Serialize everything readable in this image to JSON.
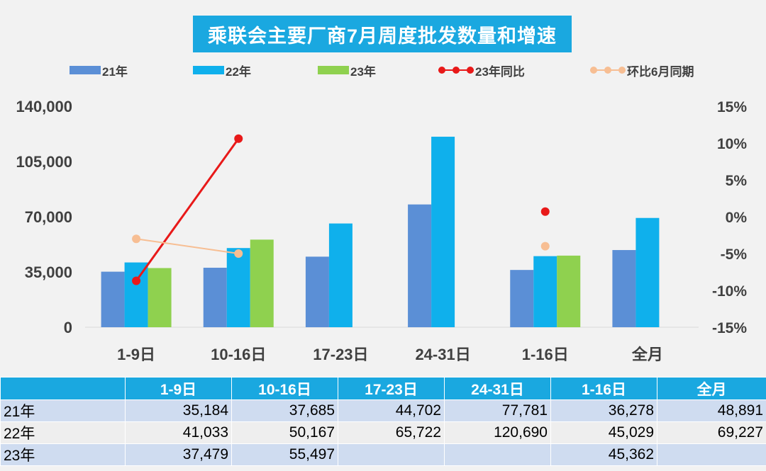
{
  "chart_data": {
    "type": "bar",
    "title": "乘联会主要厂商7月周度批发数量和增速",
    "categories": [
      "1-9日",
      "10-16日",
      "17-23日",
      "24-31日",
      "1-16日",
      "全月"
    ],
    "series": [
      {
        "name": "21年",
        "kind": "bar",
        "color": "#5b8fd6",
        "values": [
          35184,
          37685,
          44702,
          77781,
          36278,
          48891
        ]
      },
      {
        "name": "22年",
        "kind": "bar",
        "color": "#0fb0ec",
        "values": [
          41033,
          50167,
          65722,
          120690,
          45029,
          69227
        ]
      },
      {
        "name": "23年",
        "kind": "bar",
        "color": "#8fd14f",
        "values": [
          37479,
          55497,
          null,
          null,
          45362,
          null
        ]
      },
      {
        "name": "23年同比",
        "kind": "line",
        "axis": "right",
        "color": "#e81919",
        "values": [
          -8.7,
          10.6,
          null,
          null,
          0.7,
          null
        ]
      },
      {
        "name": "环比6月同期",
        "kind": "line",
        "axis": "right",
        "color": "#f7be93",
        "values": [
          -3.0,
          -5.0,
          null,
          null,
          -4.0,
          null
        ]
      }
    ],
    "y_left": {
      "ticks": [
        0,
        35000,
        70000,
        105000,
        140000
      ],
      "tick_labels": [
        "0",
        "35,000",
        "70,000",
        "105,000",
        "140,000"
      ],
      "ylim": [
        0,
        140000
      ]
    },
    "y_right": {
      "ticks": [
        -15,
        -10,
        -5,
        0,
        5,
        10,
        15
      ],
      "tick_labels": [
        "-15%",
        "-10%",
        "-5%",
        "0%",
        "5%",
        "10%",
        "15%"
      ],
      "ylim": [
        -15,
        15
      ]
    },
    "legend_position": "top"
  },
  "table": {
    "headers": [
      "",
      "1-9日",
      "10-16日",
      "17-23日",
      "24-31日",
      "1-16日",
      "全月"
    ],
    "rows": [
      {
        "label": "21年",
        "cells": [
          "35,184",
          "37,685",
          "44,702",
          "77,781",
          "36,278",
          "48,891"
        ]
      },
      {
        "label": "22年",
        "cells": [
          "41,033",
          "50,167",
          "65,722",
          "120,690",
          "45,029",
          "69,227"
        ]
      },
      {
        "label": "23年",
        "cells": [
          "37,479",
          "55,497",
          "",
          "",
          "45,362",
          ""
        ]
      }
    ]
  }
}
